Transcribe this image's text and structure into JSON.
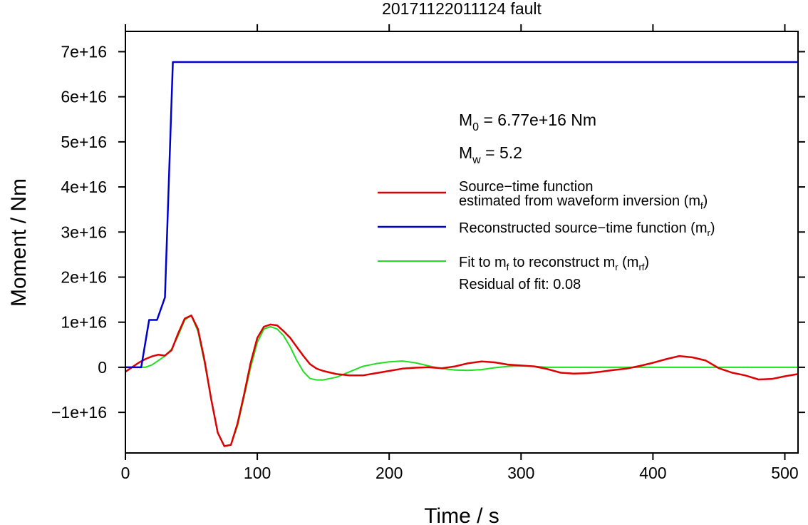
{
  "chart_data": {
    "type": "line",
    "title": "20171122011124 fault",
    "xlabel": "Time / s",
    "ylabel": "Moment / Nm",
    "xlim": [
      0,
      510
    ],
    "ylim": [
      -1.9e+16,
      7.45e+16
    ],
    "x_ticks": [
      0,
      100,
      200,
      300,
      400,
      500
    ],
    "x_tick_labels": [
      "0",
      "100",
      "200",
      "300",
      "400",
      "500"
    ],
    "y_ticks": [
      -1e+16,
      0,
      1e+16,
      2e+16,
      3e+16,
      4e+16,
      5e+16,
      6e+16,
      7e+16
    ],
    "y_tick_labels": [
      "−1e+16",
      "0",
      "1e+16",
      "2e+16",
      "3e+16",
      "4e+16",
      "5e+16",
      "6e+16",
      "7e+16"
    ],
    "grid": false,
    "annotations": {
      "m0": {
        "symbol": "M",
        "sub": "0",
        "text": " = 6.77e+16 Nm"
      },
      "mw": {
        "symbol": "M",
        "sub": "w",
        "text": " = 5.2"
      },
      "residual": "Residual of fit: 0.08"
    },
    "legend_position": "right",
    "series": [
      {
        "key": "mf",
        "color": "#dd0000",
        "legend": {
          "line1": "Source−time function",
          "line2": "estimated from waveform inversion (m",
          "sub": "f",
          "close": ")"
        },
        "x": [
          0,
          5,
          10,
          15,
          20,
          25,
          30,
          35,
          40,
          45,
          50,
          55,
          60,
          65,
          70,
          75,
          80,
          85,
          90,
          95,
          100,
          105,
          110,
          115,
          120,
          125,
          130,
          135,
          140,
          145,
          150,
          160,
          170,
          180,
          190,
          200,
          210,
          220,
          230,
          240,
          250,
          260,
          270,
          280,
          290,
          300,
          310,
          320,
          330,
          340,
          350,
          360,
          370,
          380,
          390,
          400,
          410,
          420,
          430,
          440,
          450,
          460,
          470,
          480,
          490,
          500,
          510
        ],
        "y": [
          -1000000000000000.0,
          0.0,
          1000000000000000.0,
          1800000000000000.0,
          2400000000000000.0,
          2800000000000000.0,
          2600000000000000.0,
          3800000000000000.0,
          7500000000000000.0,
          1.08e+16,
          1.15e+16,
          8500000000000000.0,
          1500000000000000.0,
          -7000000000000000.0,
          -1.45e+16,
          -1.75e+16,
          -1.72e+16,
          -1.25e+16,
          -6000000000000000.0,
          1000000000000000.0,
          6500000000000000.0,
          9000000000000000.0,
          9500000000000000.0,
          9300000000000000.0,
          8000000000000000.0,
          6500000000000000.0,
          4500000000000000.0,
          2500000000000000.0,
          700000000000000.0,
          -300000000000000.0,
          -800000000000000.0,
          -1500000000000000.0,
          -1800000000000000.0,
          -1800000000000000.0,
          -1300000000000000.0,
          -800000000000000.0,
          -300000000000000.0,
          -100000000000000.0,
          0.0,
          -200000000000000.0,
          200000000000000.0,
          900000000000000.0,
          1300000000000000.0,
          1100000000000000.0,
          600000000000000.0,
          400000000000000.0,
          200000000000000.0,
          -400000000000000.0,
          -1200000000000000.0,
          -1400000000000000.0,
          -1300000000000000.0,
          -1000000000000000.0,
          -600000000000000.0,
          -300000000000000.0,
          300000000000000.0,
          1000000000000000.0,
          1800000000000000.0,
          2500000000000000.0,
          2200000000000000.0,
          1500000000000000.0,
          -200000000000000.0,
          -1200000000000000.0,
          -1800000000000000.0,
          -2700000000000000.0,
          -2600000000000000.0,
          -2000000000000000.0,
          -1500000000000000.0
        ]
      },
      {
        "key": "mr",
        "color": "#0000cc",
        "legend": {
          "line1": "Reconstructed source−time function (m",
          "sub": "r",
          "close": ")"
        },
        "x": [
          0,
          12,
          18,
          24,
          30,
          36,
          510
        ],
        "y": [
          0.0,
          0.0,
          1.05e+16,
          1.05e+16,
          1.55e+16,
          6.77e+16,
          6.77e+16
        ]
      },
      {
        "key": "mrf",
        "color": "#22dd22",
        "legend": {
          "line1": "Fit to m",
          "sub1": "f",
          "mid": " to reconstruct m",
          "sub2": "r",
          "open": " (m",
          "sub3": "rf",
          "close": ")"
        },
        "x": [
          0,
          10,
          15,
          20,
          25,
          30,
          35,
          40,
          45,
          50,
          55,
          60,
          65,
          70,
          75,
          80,
          85,
          90,
          95,
          100,
          105,
          110,
          115,
          120,
          125,
          130,
          135,
          140,
          145,
          150,
          155,
          160,
          170,
          180,
          190,
          200,
          210,
          220,
          230,
          240,
          250,
          260,
          270,
          280,
          290,
          300,
          310,
          320,
          340,
          360,
          380,
          400,
          420,
          440,
          460,
          480,
          500,
          510
        ],
        "y": [
          0.0,
          0.0,
          0.0,
          500000000000000.0,
          1500000000000000.0,
          2500000000000000.0,
          4000000000000000.0,
          7000000000000000.0,
          1.05e+16,
          1.15e+16,
          8000000000000000.0,
          1000000000000000.0,
          -7000000000000000.0,
          -1.45e+16,
          -1.75e+16,
          -1.72e+16,
          -1.3e+16,
          -6500000000000000.0,
          0.0,
          5500000000000000.0,
          8500000000000000.0,
          9000000000000000.0,
          8500000000000000.0,
          7000000000000000.0,
          4500000000000000.0,
          1500000000000000.0,
          -1000000000000000.0,
          -2500000000000000.0,
          -2800000000000000.0,
          -2800000000000000.0,
          -2500000000000000.0,
          -2200000000000000.0,
          -1000000000000000.0,
          200000000000000.0,
          800000000000000.0,
          1200000000000000.0,
          1400000000000000.0,
          1000000000000000.0,
          300000000000000.0,
          -300000000000000.0,
          -600000000000000.0,
          -700000000000000.0,
          -500000000000000.0,
          -100000000000000.0,
          200000000000000.0,
          300000000000000.0,
          200000000000000.0,
          0.0,
          0.0,
          0.0,
          0.0,
          0.0,
          0.0,
          0.0,
          0.0,
          0.0,
          0.0,
          0.0
        ]
      }
    ]
  }
}
